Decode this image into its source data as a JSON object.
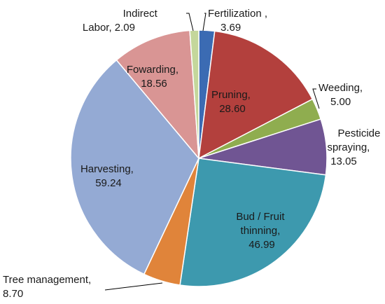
{
  "chart_data": {
    "type": "pie",
    "title": "",
    "slices": [
      {
        "line1": "Fertilization ,",
        "line2": "3.69",
        "value": 3.69,
        "color": "#3b6bb3"
      },
      {
        "line1": "Pruning,",
        "line2": "28.60",
        "value": 28.6,
        "color": "#b3403d"
      },
      {
        "line1": "Weeding,",
        "line2": "5.00",
        "value": 5.0,
        "color": "#8fad4f"
      },
      {
        "line1": "Pesticide",
        "line2": "spraying,",
        "line3": "13.05",
        "value": 13.05,
        "color": "#705593"
      },
      {
        "line1": "Bud / Fruit",
        "line2": "thinning,",
        "line3": "46.99",
        "value": 46.99,
        "color": "#3d99ae"
      },
      {
        "line1": "Tree management,",
        "line2": "8.70",
        "value": 8.7,
        "color": "#e0843a"
      },
      {
        "line1": "Harvesting,",
        "line2": "59.24",
        "value": 59.24,
        "color": "#94aad4"
      },
      {
        "line1": "Fowarding,",
        "line2": "18.56",
        "value": 18.56,
        "color": "#d99594"
      },
      {
        "line1": "Indirect",
        "line2": "Labor, 2.09",
        "value": 2.09,
        "color": "#c4d79b"
      }
    ]
  }
}
